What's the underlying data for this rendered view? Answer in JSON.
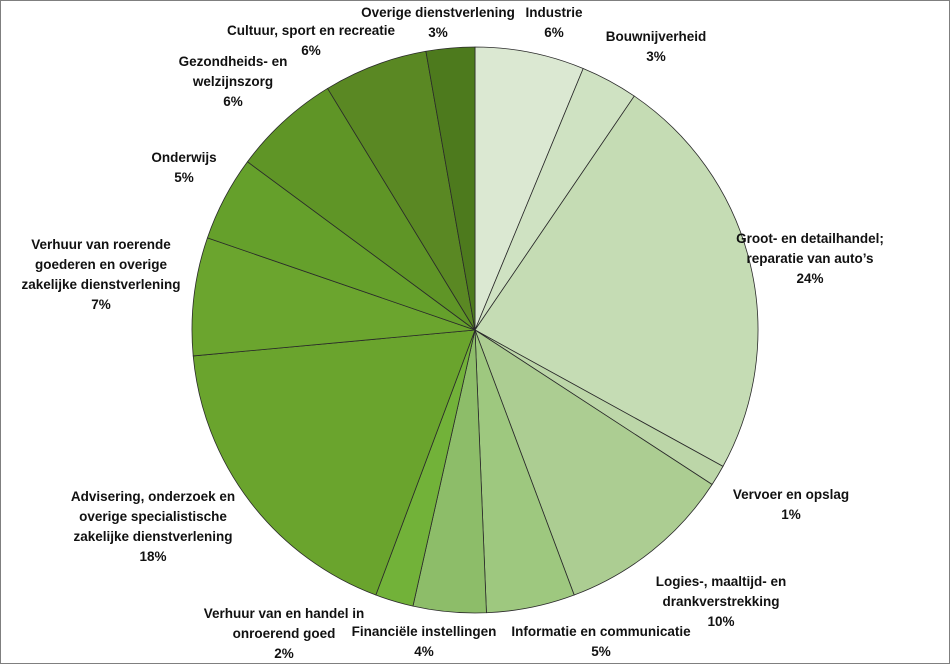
{
  "chart_data": {
    "type": "pie",
    "title": "",
    "start_angle_deg": 0,
    "direction": "clockwise",
    "slices": [
      {
        "name": "Industrie",
        "lines": [
          "Industrie"
        ],
        "pct_label": "6%",
        "value": 6.3,
        "color": "#dbe8d2"
      },
      {
        "name": "Bouwnijverheid",
        "lines": [
          "Bouwnijverheid"
        ],
        "pct_label": "3%",
        "value": 3.3,
        "color": "#cfe2c2"
      },
      {
        "name": "Groot- en detailhandel; reparatie van auto’s",
        "lines": [
          "Groot- en detailhandel;",
          "reparatie van auto’s"
        ],
        "pct_label": "24%",
        "value": 23.7,
        "color": "#c5dcb4"
      },
      {
        "name": "Vervoer en opslag",
        "lines": [
          "Vervoer en opslag"
        ],
        "pct_label": "1%",
        "value": 1.2,
        "color": "#bcd6a8"
      },
      {
        "name": "Logies-, maaltijd- en drankverstrekking",
        "lines": [
          "Logies-, maaltijd- en",
          "drankverstrekking"
        ],
        "pct_label": "10%",
        "value": 10.2,
        "color": "#accd92"
      },
      {
        "name": "Informatie en communicatie",
        "lines": [
          "Informatie en communicatie"
        ],
        "pct_label": "5%",
        "value": 5.1,
        "color": "#9ec87f"
      },
      {
        "name": "Financiële instellingen",
        "lines": [
          "Financiële instellingen"
        ],
        "pct_label": "4%",
        "value": 4.2,
        "color": "#8dbd69"
      },
      {
        "name": "Verhuur van en handel in onroerend goed",
        "lines": [
          "Verhuur van en handel in",
          "onroerend goed"
        ],
        "pct_label": "2%",
        "value": 2.2,
        "color": "#72b239"
      },
      {
        "name": "Advisering, onderzoek en overige specialistische zakelijke dienstverlening",
        "lines": [
          "Advisering, onderzoek en",
          "overige specialistische",
          "zakelijke dienstverlening"
        ],
        "pct_label": "18%",
        "value": 18.0,
        "color": "#6aa42d"
      },
      {
        "name": "Verhuur van roerende goederen en overige zakelijke dienstverlening",
        "lines": [
          "Verhuur van roerende",
          "goederen en overige",
          "zakelijke dienstverlening"
        ],
        "pct_label": "7%",
        "value": 6.8,
        "color": "#6ba52e"
      },
      {
        "name": "Onderwijs",
        "lines": [
          "Onderwijs"
        ],
        "pct_label": "5%",
        "value": 4.9,
        "color": "#65a02b"
      },
      {
        "name": "Gezondheids- en welzijnszorg",
        "lines": [
          "Gezondheids- en",
          "welzijnszorg"
        ],
        "pct_label": "6%",
        "value": 6.2,
        "color": "#5f9526"
      },
      {
        "name": "Cultuur, sport en recreatie",
        "lines": [
          "Cultuur, sport en recreatie"
        ],
        "pct_label": "6%",
        "value": 6.0,
        "color": "#5a8823"
      },
      {
        "name": "Overige dienstverlening",
        "lines": [
          "Overige dienstverlening"
        ],
        "pct_label": "3%",
        "value": 2.8,
        "color": "#4d7a1d"
      }
    ]
  }
}
